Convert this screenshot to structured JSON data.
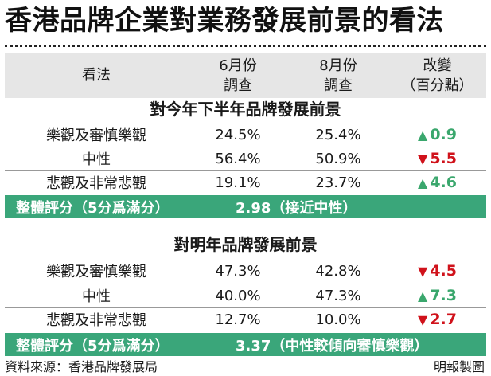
{
  "title": "香港品牌企業對業務發展前景的看法",
  "header": {
    "col1": "看法",
    "col2_line1": "6月份",
    "col2_line2": "調查",
    "col3_line1": "8月份",
    "col3_line2": "調查",
    "col4_line1": "改變",
    "col4_line2": "（百分點）"
  },
  "sections": [
    {
      "title": "對今年下半年品牌發展前景",
      "rows": [
        {
          "label": "樂觀及審慎樂觀",
          "june": "24.5%",
          "august": "25.4%",
          "change": "0.9",
          "direction": "up"
        },
        {
          "label": "中性",
          "june": "56.4%",
          "august": "50.9%",
          "change": "5.5",
          "direction": "down"
        },
        {
          "label": "悲觀及非常悲觀",
          "june": "19.1%",
          "august": "23.7%",
          "change": "4.6",
          "direction": "up"
        }
      ],
      "score_label": "整體評分（5分爲滿分）",
      "score_value": "2.98（接近中性）"
    },
    {
      "title": "對明年品牌發展前景",
      "rows": [
        {
          "label": "樂觀及審慎樂觀",
          "june": "47.3%",
          "august": "42.8%",
          "change": "4.5",
          "direction": "down"
        },
        {
          "label": "中性",
          "june": "40.0%",
          "august": "47.3%",
          "change": "7.3",
          "direction": "up"
        },
        {
          "label": "悲觀及非常悲觀",
          "june": "12.7%",
          "august": "10.0%",
          "change": "2.7",
          "direction": "down"
        }
      ],
      "score_label": "整體評分（5分爲滿分）",
      "score_value": "3.37（中性較傾向審慎樂觀）"
    }
  ],
  "icons": {
    "up": "triangle-up-icon",
    "down": "triangle-down-icon"
  },
  "colors": {
    "up": "#3aa76d",
    "down": "#d0121b",
    "score_bar": "#3aa67a",
    "header_bg": "#e6e6e6"
  },
  "footer": {
    "source": "資料來源：香港品牌發展局",
    "credit": "明報製圖"
  }
}
